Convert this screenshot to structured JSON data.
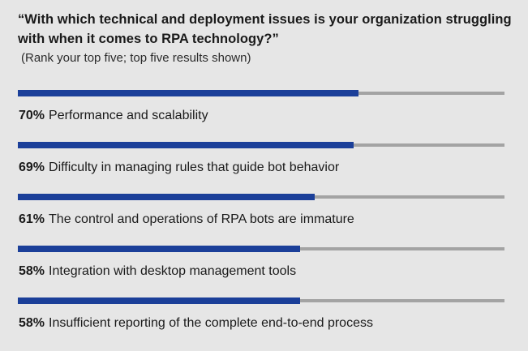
{
  "chart_data": {
    "type": "bar",
    "title": "“With which technical and deployment issues is your organization struggling with when it comes to RPA technology?”",
    "subtitle": "(Rank your top five; top five results shown)",
    "xlim": [
      0,
      100
    ],
    "categories": [
      "Performance and scalability",
      "Difficulty in managing rules that guide bot behavior",
      "The control and operations of RPA bots are immature",
      "Integration with desktop management tools",
      "Insufficient reporting of the complete end-to-end process"
    ],
    "values": [
      70,
      69,
      61,
      58,
      58
    ],
    "value_labels": [
      "70%",
      "69%",
      "61%",
      "58%",
      "58%"
    ],
    "colors": {
      "bar": "#1b3f99",
      "track": "#a3a3a3",
      "background": "#e6e6e6"
    }
  }
}
